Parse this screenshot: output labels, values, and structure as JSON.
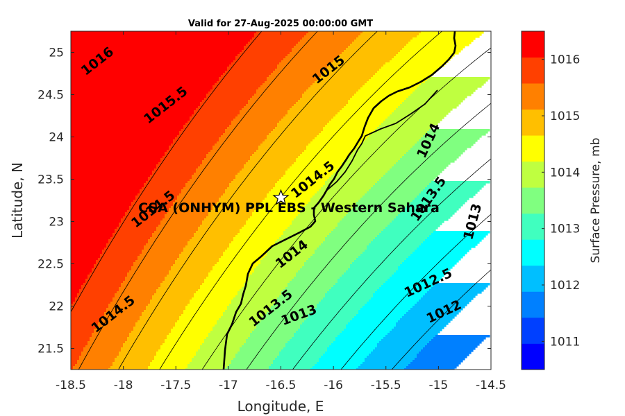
{
  "chart_data": {
    "type": "contour",
    "title": "Valid for 27-Aug-2025 00:00:00 GMT",
    "xlabel": "Longitude, E",
    "ylabel": "Latitude, N",
    "xlim": [
      -18.5,
      -14.5
    ],
    "ylim": [
      21.25,
      25.25
    ],
    "xticks": [
      "-18.5",
      "-18",
      "-17.5",
      "-17",
      "-16.5",
      "-16",
      "-15.5",
      "-15",
      "-14.5"
    ],
    "yticks": [
      "21.5",
      "22",
      "22.5",
      "23",
      "23.5",
      "24",
      "24.5",
      "25"
    ],
    "colorbar": {
      "label": "Surface Pressure, mb",
      "range": [
        1010.5,
        1016.5
      ],
      "ticks": [
        "1011",
        "1012",
        "1013",
        "1014",
        "1015",
        "1016"
      ],
      "colors": [
        "#0000ff",
        "#0040ff",
        "#0080ff",
        "#00bfff",
        "#00ffff",
        "#40ffbf",
        "#80ff80",
        "#bfff40",
        "#ffff00",
        "#ffbf00",
        "#ff8000",
        "#ff4000",
        "#ff0000"
      ]
    },
    "levels": [
      1012,
      1012.5,
      1013,
      1013.5,
      1014,
      1014.5,
      1015,
      1015.5,
      1016
    ],
    "contour_labels": [
      {
        "text": "1016",
        "lon": -18.25,
        "lat": 24.9,
        "rot": -38
      },
      {
        "text": "1015.5",
        "lon": -17.6,
        "lat": 24.38,
        "rot": -38
      },
      {
        "text": "1015",
        "lon": -16.05,
        "lat": 24.8,
        "rot": -38
      },
      {
        "text": "1014.5",
        "lon": -16.2,
        "lat": 23.5,
        "rot": -38
      },
      {
        "text": "1014.5",
        "lon": -17.72,
        "lat": 23.15,
        "rot": -38
      },
      {
        "text": "1014.5",
        "lon": -18.1,
        "lat": 21.91,
        "rot": -38
      },
      {
        "text": "1014",
        "lon": -15.1,
        "lat": 23.96,
        "rot": -65
      },
      {
        "text": "1014",
        "lon": -16.4,
        "lat": 22.62,
        "rot": -38
      },
      {
        "text": "1013.5",
        "lon": -15.1,
        "lat": 23.27,
        "rot": -55
      },
      {
        "text": "1013.5",
        "lon": -16.6,
        "lat": 21.98,
        "rot": -38
      },
      {
        "text": "1013",
        "lon": -14.68,
        "lat": 23.0,
        "rot": -75
      },
      {
        "text": "1013",
        "lon": -16.33,
        "lat": 21.9,
        "rot": -20
      },
      {
        "text": "1012.5",
        "lon": -15.1,
        "lat": 22.28,
        "rot": -25
      },
      {
        "text": "1012",
        "lon": -14.95,
        "lat": 21.94,
        "rot": -25
      }
    ],
    "site": {
      "label": "CSA (ONHYM) PPL EBS  - Western Sahara",
      "lon": -16.5,
      "lat": 23.28
    },
    "grid": false
  }
}
